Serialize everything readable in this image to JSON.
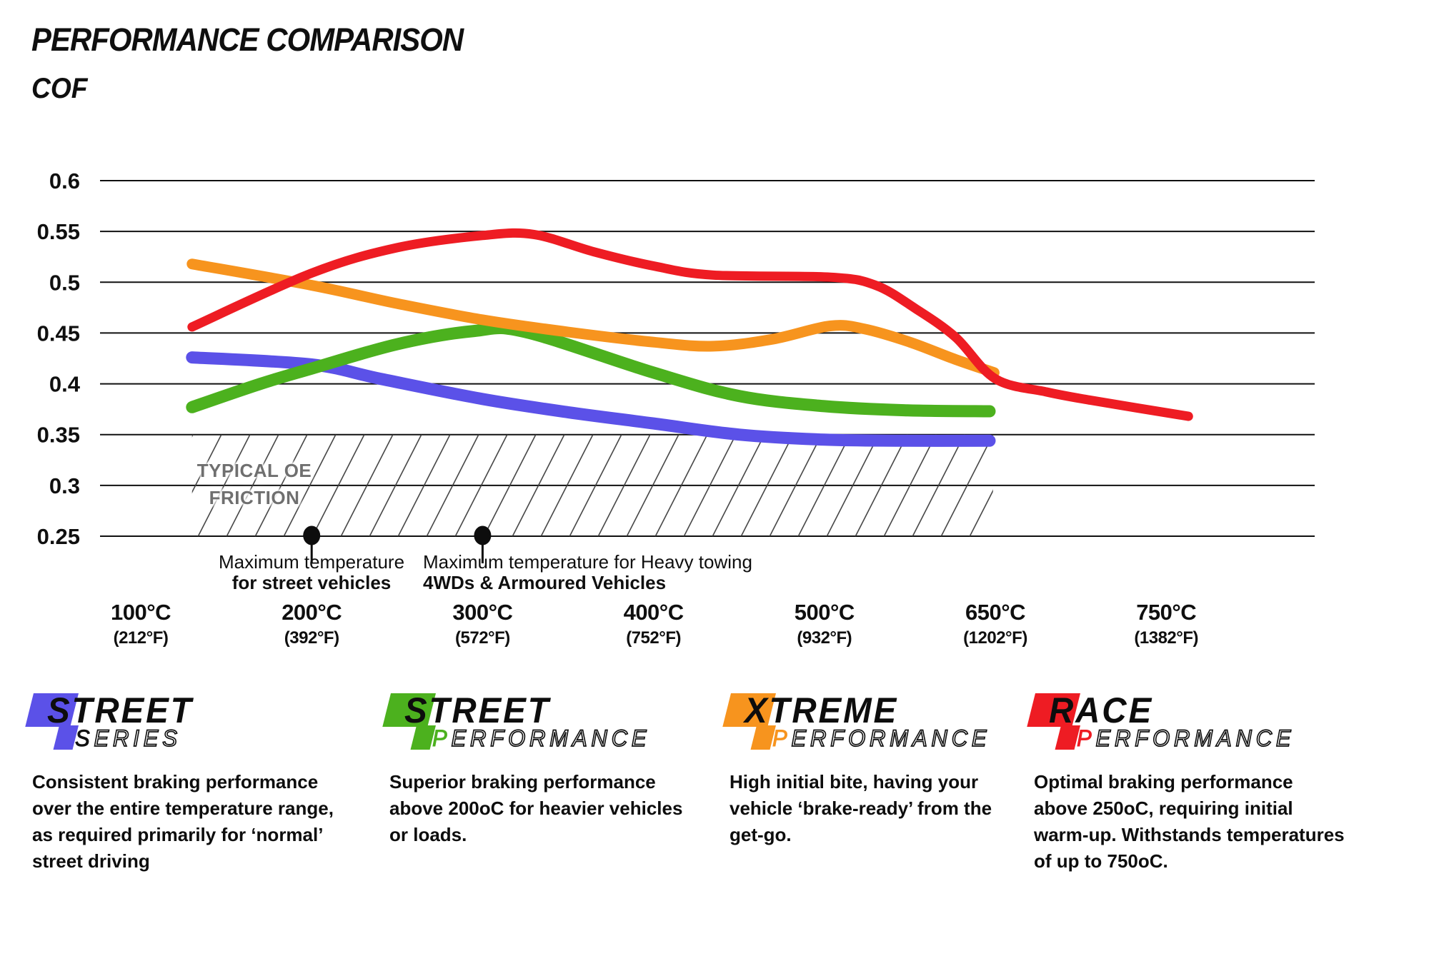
{
  "page": {
    "title": "PERFORMANCE COMPARISON",
    "ylabel": "COF"
  },
  "chart_data": {
    "type": "line",
    "title": "PERFORMANCE COMPARISON",
    "ylabel": "COF",
    "xlabel": "",
    "grid": true,
    "y_axis": {
      "min": 0.25,
      "max": 0.6,
      "ticks": [
        0.6,
        0.55,
        0.5,
        0.45,
        0.4,
        0.35,
        0.3,
        0.25
      ]
    },
    "x_axis": {
      "ticks": [
        {
          "temp": 100,
          "label_c": "100°C",
          "label_f": "(212°F)"
        },
        {
          "temp": 200,
          "label_c": "200°C",
          "label_f": "(392°F)"
        },
        {
          "temp": 300,
          "label_c": "300°C",
          "label_f": "(572°F)"
        },
        {
          "temp": 400,
          "label_c": "400°C",
          "label_f": "(752°F)"
        },
        {
          "temp": 500,
          "label_c": "500°C",
          "label_f": "(932°F)"
        },
        {
          "temp": 650,
          "label_c": "650°C",
          "label_f": "(1202°F)"
        },
        {
          "temp": 750,
          "label_c": "750°C",
          "label_f": "(1382°F)"
        }
      ]
    },
    "series": [
      {
        "name": "Street Series",
        "color": "#5B51E8",
        "width": 17,
        "points": [
          [
            130,
            0.426
          ],
          [
            200,
            0.419
          ],
          [
            240,
            0.405
          ],
          [
            300,
            0.385
          ],
          [
            350,
            0.372
          ],
          [
            400,
            0.361
          ],
          [
            450,
            0.35
          ],
          [
            500,
            0.345
          ],
          [
            570,
            0.344
          ],
          [
            645,
            0.344
          ]
        ]
      },
      {
        "name": "Street Performance",
        "color": "#4CB11E",
        "width": 17,
        "points": [
          [
            130,
            0.377
          ],
          [
            170,
            0.4
          ],
          [
            200,
            0.415
          ],
          [
            250,
            0.439
          ],
          [
            295,
            0.452
          ],
          [
            325,
            0.451
          ],
          [
            400,
            0.411
          ],
          [
            450,
            0.388
          ],
          [
            500,
            0.378
          ],
          [
            570,
            0.374
          ],
          [
            645,
            0.373
          ]
        ]
      },
      {
        "name": "Xtreme Performance",
        "color": "#F7941E",
        "width": 15,
        "points": [
          [
            130,
            0.518
          ],
          [
            200,
            0.497
          ],
          [
            250,
            0.479
          ],
          [
            300,
            0.463
          ],
          [
            350,
            0.451
          ],
          [
            400,
            0.441
          ],
          [
            435,
            0.437
          ],
          [
            470,
            0.444
          ],
          [
            505,
            0.457
          ],
          [
            535,
            0.454
          ],
          [
            575,
            0.441
          ],
          [
            615,
            0.424
          ],
          [
            649,
            0.411
          ]
        ]
      },
      {
        "name": "Race Performance",
        "color": "#EE1C23",
        "width": 13,
        "points": [
          [
            130,
            0.456
          ],
          [
            200,
            0.509
          ],
          [
            250,
            0.534
          ],
          [
            300,
            0.546
          ],
          [
            330,
            0.547
          ],
          [
            365,
            0.53
          ],
          [
            400,
            0.516
          ],
          [
            435,
            0.507
          ],
          [
            505,
            0.505
          ],
          [
            545,
            0.497
          ],
          [
            580,
            0.474
          ],
          [
            615,
            0.446
          ],
          [
            650,
            0.405
          ],
          [
            680,
            0.392
          ],
          [
            705,
            0.384
          ],
          [
            763,
            0.368
          ]
        ]
      }
    ],
    "oe_band": {
      "label_line1": "TYPICAL OE",
      "label_line2": "FRICTION",
      "cof_from": 0.25,
      "cof_to": 0.35,
      "temp_from": 130,
      "temp_to": 648
    },
    "annotations": [
      {
        "temp": 200,
        "line1": "Maximum temperature",
        "line2": "for street vehicles"
      },
      {
        "temp": 300,
        "line1": "Maximum temperature for Heavy towing",
        "line2": "4WDs & Armoured Vehicles"
      }
    ]
  },
  "legends": [
    {
      "name": "Street Series",
      "word1": "STREET",
      "word2_first": "S",
      "word2_rest": "ERIES",
      "color": "#5B51E8",
      "first_letter_style": "dark",
      "desc": "Consistent braking performance over the entire temperature range, as required primarily for ‘normal’ street driving"
    },
    {
      "name": "Street Performance",
      "word1": "STREET",
      "word2_first": "P",
      "word2_rest": "ERFORMANCE",
      "color": "#4CB11E",
      "first_letter_style": "accent",
      "desc": "Superior braking performance above 200oC for heavier vehicles or loads."
    },
    {
      "name": "Xtreme Performance",
      "word1": "XTREME",
      "word2_first": "P",
      "word2_rest": "ERFORMANCE",
      "color": "#F7941E",
      "first_letter_style": "accent",
      "desc": "High initial bite, having your vehicle ‘brake-ready’ from the get-go."
    },
    {
      "name": "Race Performance",
      "word1": "RACE",
      "word2_first": "P",
      "word2_rest": "ERFORMANCE",
      "color": "#EE1C23",
      "first_letter_style": "accent",
      "desc": "Optimal braking performance above 250oC, requiring initial warm-up. Withstands temperatures of up to 750oC."
    }
  ]
}
